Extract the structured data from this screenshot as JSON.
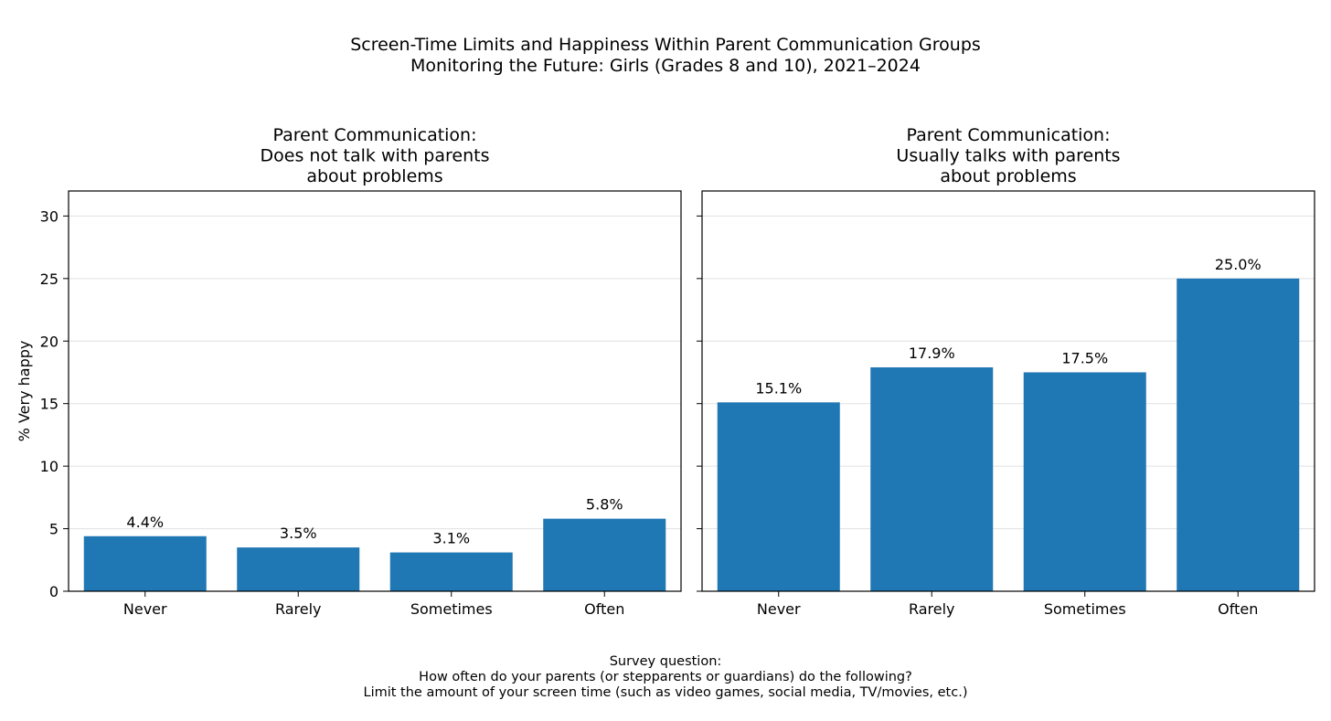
{
  "figure": {
    "title_lines": [
      "Screen-Time Limits and Happiness Within Parent Communication Groups",
      "Monitoring the Future: Girls (Grades 8 and 10), 2021–2024"
    ],
    "ylabel": "% Very happy",
    "footer_lines": [
      "Survey question:",
      "How often do your parents (or stepparents or guardians) do the following?",
      "Limit the amount of your screen time (such as video games, social media, TV/movies, etc.)"
    ],
    "bar_color": "#1f77b4"
  },
  "chart_data": [
    {
      "type": "bar",
      "title_lines": [
        "Parent Communication:",
        "Does not talk with parents",
        "about problems"
      ],
      "categories": [
        "Never",
        "Rarely",
        "Sometimes",
        "Often"
      ],
      "values": [
        4.4,
        3.5,
        3.1,
        5.8
      ],
      "labels": [
        "4.4%",
        "3.5%",
        "3.1%",
        "5.8%"
      ],
      "ylim": [
        0,
        32
      ],
      "yticks": [
        0,
        5,
        10,
        15,
        20,
        25,
        30
      ],
      "ylabel": "% Very happy",
      "grid": true
    },
    {
      "type": "bar",
      "title_lines": [
        "Parent Communication:",
        "Usually talks with parents",
        "about problems"
      ],
      "categories": [
        "Never",
        "Rarely",
        "Sometimes",
        "Often"
      ],
      "values": [
        15.1,
        17.9,
        17.5,
        25.0
      ],
      "labels": [
        "15.1%",
        "17.9%",
        "17.5%",
        "25.0%"
      ],
      "ylim": [
        0,
        32
      ],
      "yticks": [
        0,
        5,
        10,
        15,
        20,
        25,
        30
      ],
      "ylabel": "",
      "grid": true
    }
  ]
}
